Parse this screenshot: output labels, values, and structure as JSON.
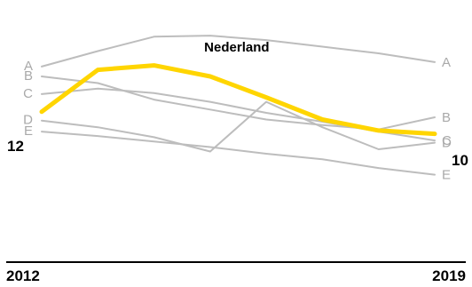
{
  "chart_data": {
    "type": "line",
    "x": [
      2012,
      2013,
      2014,
      2015,
      2016,
      2017,
      2018,
      2019
    ],
    "xaxis_labels": [
      "2012",
      "2019"
    ],
    "series": [
      {
        "name": "A",
        "values": [
          16.1,
          17.5,
          18.8,
          18.9,
          18.5,
          17.9,
          17.3,
          16.5
        ],
        "color": "#bdbdbd"
      },
      {
        "name": "B",
        "values": [
          15.2,
          14.6,
          13.1,
          12.2,
          11.3,
          10.8,
          10.4,
          11.5
        ],
        "color": "#bdbdbd"
      },
      {
        "name": "C",
        "values": [
          13.6,
          14.1,
          13.7,
          12.9,
          11.9,
          11.1,
          10.2,
          9.4
        ],
        "color": "#bdbdbd"
      },
      {
        "name": "D",
        "values": [
          11.2,
          10.6,
          9.7,
          8.4,
          12.9,
          10.6,
          8.6,
          9.2
        ],
        "color": "#bdbdbd"
      },
      {
        "name": "E",
        "values": [
          10.2,
          9.8,
          9.3,
          8.8,
          8.2,
          7.7,
          6.9,
          6.3
        ],
        "color": "#bdbdbd"
      },
      {
        "name": "Nederland",
        "values": [
          12.0,
          15.8,
          16.2,
          15.2,
          13.3,
          11.3,
          10.3,
          10.0
        ],
        "color": "#ffd500",
        "highlight": true
      }
    ],
    "labels": {
      "highlight_name": "Nederland",
      "start_value": "12",
      "end_value": "10"
    },
    "ylim": [
      2,
      21
    ],
    "grid": false,
    "legend": "inline"
  }
}
